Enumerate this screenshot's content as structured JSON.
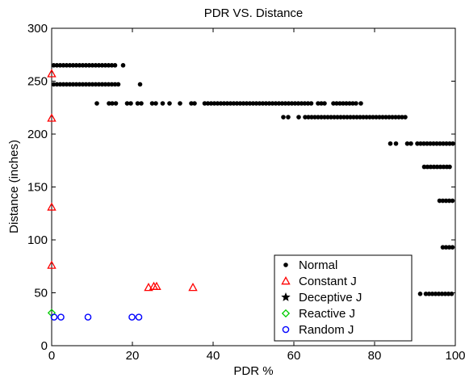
{
  "chart_data": {
    "type": "scatter",
    "title": "PDR  VS. Distance",
    "xlabel": "PDR %",
    "ylabel": "Distance (inches)",
    "xlim": [
      0,
      100
    ],
    "ylim": [
      0,
      300
    ],
    "xticks": [
      0,
      20,
      40,
      60,
      80,
      100
    ],
    "yticks": [
      0,
      50,
      100,
      150,
      200,
      250,
      300
    ],
    "grid": false,
    "legend_position": "bottom-right",
    "series": [
      {
        "name": "Normal",
        "marker": "filled-circle",
        "color": "#000000",
        "points": [
          [
            0.5,
            265
          ],
          [
            1.3,
            265
          ],
          [
            2.1,
            265
          ],
          [
            2.9,
            265
          ],
          [
            3.7,
            265
          ],
          [
            4.5,
            265
          ],
          [
            5.3,
            265
          ],
          [
            6.1,
            265
          ],
          [
            6.9,
            265
          ],
          [
            7.7,
            265
          ],
          [
            8.5,
            265
          ],
          [
            9.3,
            265
          ],
          [
            10.1,
            265
          ],
          [
            10.9,
            265
          ],
          [
            11.7,
            265
          ],
          [
            12.5,
            265
          ],
          [
            13.3,
            265
          ],
          [
            14.1,
            265
          ],
          [
            14.9,
            265
          ],
          [
            15.7,
            265
          ],
          [
            17.7,
            265
          ],
          [
            0.5,
            247
          ],
          [
            1.3,
            247
          ],
          [
            2.1,
            247
          ],
          [
            2.9,
            247
          ],
          [
            3.7,
            247
          ],
          [
            4.5,
            247
          ],
          [
            5.3,
            247
          ],
          [
            6.1,
            247
          ],
          [
            6.9,
            247
          ],
          [
            7.7,
            247
          ],
          [
            8.5,
            247
          ],
          [
            9.3,
            247
          ],
          [
            10.1,
            247
          ],
          [
            10.9,
            247
          ],
          [
            11.7,
            247
          ],
          [
            12.5,
            247
          ],
          [
            13.3,
            247
          ],
          [
            14.1,
            247
          ],
          [
            14.9,
            247
          ],
          [
            15.7,
            247
          ],
          [
            16.5,
            247
          ],
          [
            21.9,
            247
          ],
          [
            11.2,
            229
          ],
          [
            14.2,
            229
          ],
          [
            15.0,
            229
          ],
          [
            15.9,
            229
          ],
          [
            18.7,
            229
          ],
          [
            19.6,
            229
          ],
          [
            21.3,
            229
          ],
          [
            22.2,
            229
          ],
          [
            24.9,
            229
          ],
          [
            25.8,
            229
          ],
          [
            27.5,
            229
          ],
          [
            29.2,
            229
          ],
          [
            31.8,
            229
          ],
          [
            34.6,
            229
          ],
          [
            35.4,
            229
          ],
          [
            37.9,
            229
          ],
          [
            38.7,
            229
          ],
          [
            39.5,
            229
          ],
          [
            40.3,
            229
          ],
          [
            41.1,
            229
          ],
          [
            41.9,
            229
          ],
          [
            42.7,
            229
          ],
          [
            43.5,
            229
          ],
          [
            44.3,
            229
          ],
          [
            45.1,
            229
          ],
          [
            45.9,
            229
          ],
          [
            46.7,
            229
          ],
          [
            47.5,
            229
          ],
          [
            48.3,
            229
          ],
          [
            49.1,
            229
          ],
          [
            49.9,
            229
          ],
          [
            50.7,
            229
          ],
          [
            51.5,
            229
          ],
          [
            52.3,
            229
          ],
          [
            53.1,
            229
          ],
          [
            53.9,
            229
          ],
          [
            54.7,
            229
          ],
          [
            55.5,
            229
          ],
          [
            56.3,
            229
          ],
          [
            57.1,
            229
          ],
          [
            57.9,
            229
          ],
          [
            58.7,
            229
          ],
          [
            59.5,
            229
          ],
          [
            60.3,
            229
          ],
          [
            61.1,
            229
          ],
          [
            61.9,
            229
          ],
          [
            62.7,
            229
          ],
          [
            63.5,
            229
          ],
          [
            64.3,
            229
          ],
          [
            66.0,
            229
          ],
          [
            66.8,
            229
          ],
          [
            67.6,
            229
          ],
          [
            69.8,
            229
          ],
          [
            70.6,
            229
          ],
          [
            71.4,
            229
          ],
          [
            72.2,
            229
          ],
          [
            73.0,
            229
          ],
          [
            73.8,
            229
          ],
          [
            74.6,
            229
          ],
          [
            75.4,
            229
          ],
          [
            76.6,
            229
          ],
          [
            57.4,
            216
          ],
          [
            58.6,
            216
          ],
          [
            61.2,
            216
          ],
          [
            62.8,
            216
          ],
          [
            63.6,
            216
          ],
          [
            64.4,
            216
          ],
          [
            65.2,
            216
          ],
          [
            66.0,
            216
          ],
          [
            66.8,
            216
          ],
          [
            67.6,
            216
          ],
          [
            68.4,
            216
          ],
          [
            69.2,
            216
          ],
          [
            70.0,
            216
          ],
          [
            70.8,
            216
          ],
          [
            71.6,
            216
          ],
          [
            72.4,
            216
          ],
          [
            73.2,
            216
          ],
          [
            74.0,
            216
          ],
          [
            74.8,
            216
          ],
          [
            75.6,
            216
          ],
          [
            76.4,
            216
          ],
          [
            77.2,
            216
          ],
          [
            78.0,
            216
          ],
          [
            78.8,
            216
          ],
          [
            79.6,
            216
          ],
          [
            80.4,
            216
          ],
          [
            81.2,
            216
          ],
          [
            82.0,
            216
          ],
          [
            82.8,
            216
          ],
          [
            83.6,
            216
          ],
          [
            84.4,
            216
          ],
          [
            85.2,
            216
          ],
          [
            86.0,
            216
          ],
          [
            86.8,
            216
          ],
          [
            87.6,
            216
          ],
          [
            83.9,
            191
          ],
          [
            85.3,
            191
          ],
          [
            88.1,
            191
          ],
          [
            89.0,
            191
          ],
          [
            90.6,
            191
          ],
          [
            91.4,
            191
          ],
          [
            92.2,
            191
          ],
          [
            93.0,
            191
          ],
          [
            93.8,
            191
          ],
          [
            94.6,
            191
          ],
          [
            95.4,
            191
          ],
          [
            96.2,
            191
          ],
          [
            97.0,
            191
          ],
          [
            97.8,
            191
          ],
          [
            98.6,
            191
          ],
          [
            99.4,
            191
          ],
          [
            92.3,
            169
          ],
          [
            93.1,
            169
          ],
          [
            93.9,
            169
          ],
          [
            94.7,
            169
          ],
          [
            95.5,
            169
          ],
          [
            96.3,
            169
          ],
          [
            97.1,
            169
          ],
          [
            97.9,
            169
          ],
          [
            98.6,
            169
          ],
          [
            96.1,
            137
          ],
          [
            96.9,
            137
          ],
          [
            97.7,
            137
          ],
          [
            98.5,
            137
          ],
          [
            99.3,
            137
          ],
          [
            96.9,
            93
          ],
          [
            97.7,
            93
          ],
          [
            98.5,
            93
          ],
          [
            99.3,
            93
          ],
          [
            91.3,
            49
          ],
          [
            92.7,
            49
          ],
          [
            93.5,
            49
          ],
          [
            94.3,
            49
          ],
          [
            95.1,
            49
          ],
          [
            95.9,
            49
          ],
          [
            96.7,
            49
          ],
          [
            97.5,
            49
          ],
          [
            98.3,
            49
          ],
          [
            99.1,
            49
          ]
        ]
      },
      {
        "name": "Constant J",
        "marker": "open-triangle",
        "color": "#ff0000",
        "points": [
          [
            0,
            257
          ],
          [
            0,
            215
          ],
          [
            0,
            131
          ],
          [
            0,
            76
          ],
          [
            24.0,
            55
          ],
          [
            25.3,
            56
          ],
          [
            26.0,
            56
          ],
          [
            35.0,
            55
          ]
        ]
      },
      {
        "name": "Deceptive J",
        "marker": "filled-star",
        "color": "#000000",
        "points": []
      },
      {
        "name": "Reactive J",
        "marker": "open-diamond",
        "color": "#00cc00",
        "points": [
          [
            0,
            31
          ]
        ]
      },
      {
        "name": "Random J",
        "marker": "open-circle",
        "color": "#0000ff",
        "points": [
          [
            0.6,
            27
          ],
          [
            2.3,
            27
          ],
          [
            9.0,
            27
          ],
          [
            19.9,
            27
          ],
          [
            21.6,
            27
          ]
        ]
      }
    ]
  }
}
